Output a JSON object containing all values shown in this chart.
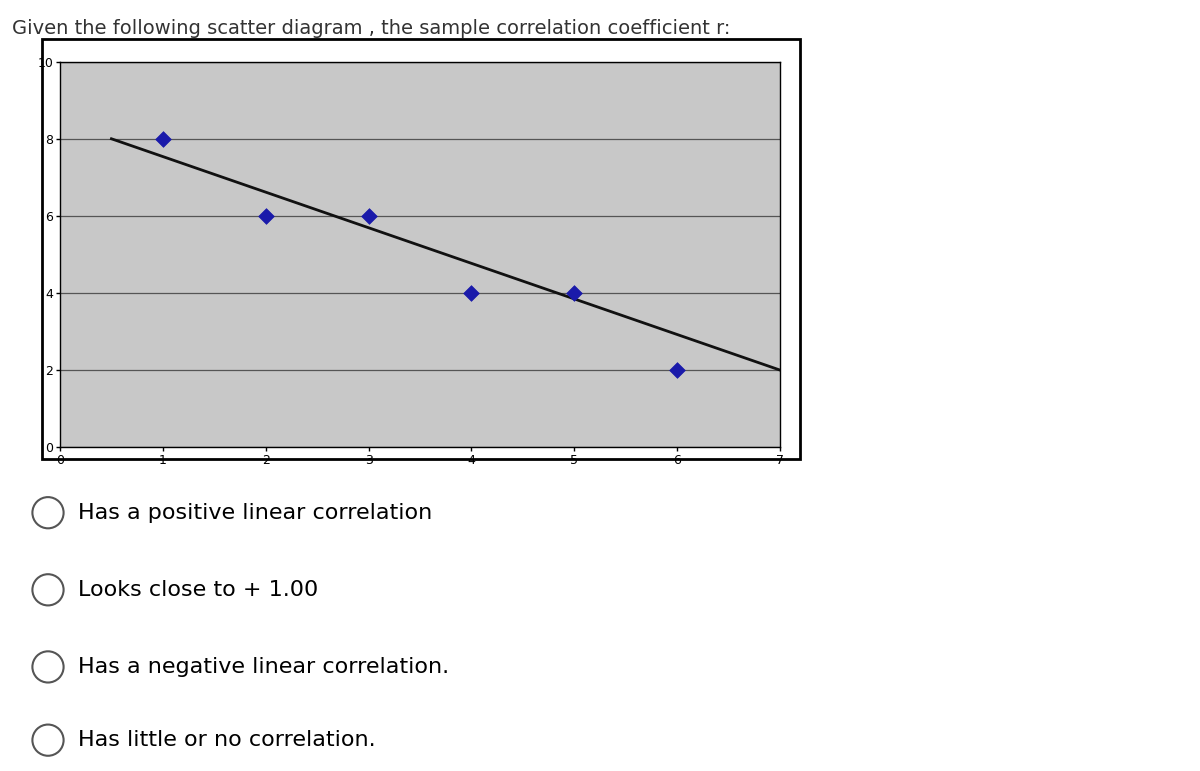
{
  "scatter_x": [
    1,
    2,
    3,
    4,
    5,
    6
  ],
  "scatter_y": [
    8,
    6,
    6,
    4,
    4,
    2
  ],
  "trendline_x": [
    0.5,
    7.0
  ],
  "trendline_y": [
    8.0,
    2.0
  ],
  "marker_color": "#1a1aaa",
  "marker_size": 8,
  "line_color": "#111111",
  "line_width": 2.0,
  "xlim": [
    0,
    7
  ],
  "ylim": [
    0,
    10
  ],
  "xticks": [
    0,
    1,
    2,
    3,
    4,
    5,
    6,
    7
  ],
  "yticks": [
    0,
    2,
    4,
    6,
    8,
    10
  ],
  "plot_area_bg": "#c8c8c8",
  "title": "Given the following scatter diagram , the sample correlation coefficient r:",
  "title_fontsize": 14,
  "title_color": "#333333",
  "options": [
    "Has a positive linear correlation",
    "Looks close to + 1.00",
    "Has a negative linear correlation.",
    "Has little or no correlation."
  ],
  "option_fontsize": 16,
  "fig_bg_color": "#ffffff"
}
